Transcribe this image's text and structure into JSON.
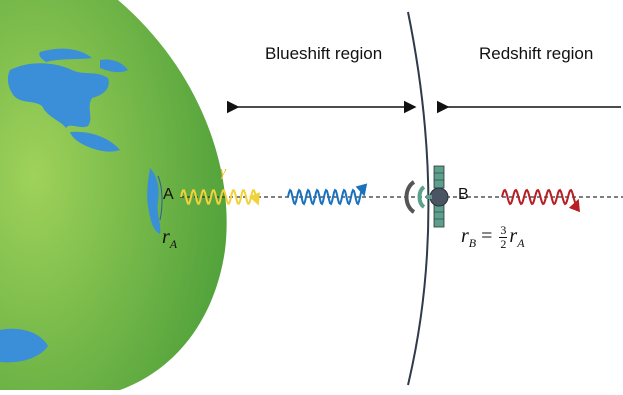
{
  "regions": {
    "blueshift_label": "Blueshift region",
    "redshift_label": "Redshift region"
  },
  "points": {
    "a_label": "A",
    "b_label": "B"
  },
  "math": {
    "gamma": "γ",
    "r_a_base": "r",
    "r_a_sub": "A",
    "r_b_base": "r",
    "r_b_sub": "B",
    "equals": " = ",
    "frac_num": "3",
    "frac_den": "2",
    "r_a2_base": "r",
    "r_a2_sub": "A"
  },
  "colors": {
    "earth_ocean_light": "#9fd25a",
    "earth_ocean_dark": "#4fa03a",
    "land": "#3a8fd8",
    "photon_emitted": "#f3d13a",
    "photon_blueshift": "#1a72bf",
    "photon_redshift": "#b81f24",
    "boundary": "#2f3a4a",
    "satellite_panel": "#5aa08c"
  }
}
